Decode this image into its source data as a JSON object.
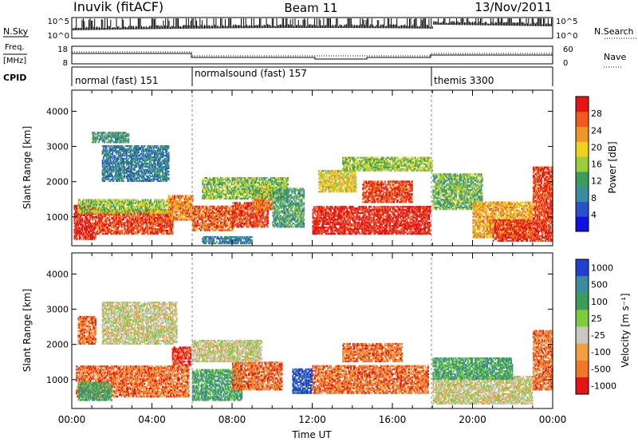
{
  "header": {
    "station": "Inuvik (fitACF)",
    "beam": "Beam 11",
    "date": "13/Nov/2011"
  },
  "left_labels": {
    "nsky": "N.Sky",
    "freq": "Freq.",
    "freq_unit": "[MHz]",
    "cpid": "CPID"
  },
  "right_labels": {
    "nsearch": "N.Search",
    "nave": "Nave"
  },
  "nsky_panel": {
    "left_ticks": [
      "10^5",
      "10^0"
    ],
    "right_ticks": [
      "10^5",
      "10^0"
    ]
  },
  "freq_panel": {
    "left_ticks": [
      "18",
      "8"
    ],
    "right_ticks": [
      "60",
      "0"
    ]
  },
  "cpid_segments": [
    {
      "label": "normal (fast) 151",
      "start_hour": 0,
      "end_hour": 6
    },
    {
      "label": "normalsound (fast) 157",
      "start_hour": 6,
      "end_hour": 18
    },
    {
      "label": "themis 3300",
      "start_hour": 18,
      "end_hour": 24
    }
  ],
  "chart_data": [
    {
      "type": "heatmap",
      "name": "power",
      "ylabel": "Slant Range [km]",
      "yticks": [
        1000,
        2000,
        3000,
        4000
      ],
      "ylim": [
        180,
        4600
      ],
      "xlim": [
        0,
        24
      ],
      "colorbar": {
        "label": "Power [dB]",
        "ticks": [
          "4",
          "8",
          "12",
          "16",
          "20",
          "24",
          "28"
        ],
        "colors": [
          "#1010e0",
          "#2850c8",
          "#3c8ca0",
          "#3c9c5a",
          "#9ccc3c",
          "#f0d21e",
          "#f09628",
          "#f05a1e",
          "#e61414"
        ]
      },
      "regions": [
        {
          "h0": 0.1,
          "h1": 1.2,
          "r0": 350,
          "r1": 1300,
          "v": 28
        },
        {
          "h0": 1.2,
          "h1": 5.0,
          "r0": 500,
          "r1": 1200,
          "v": 26
        },
        {
          "h0": 0.3,
          "h1": 4.8,
          "r0": 1100,
          "r1": 1500,
          "v": 14
        },
        {
          "h0": 4.8,
          "h1": 6.0,
          "r0": 900,
          "r1": 1600,
          "v": 22
        },
        {
          "h0": 1.5,
          "h1": 4.8,
          "r0": 2000,
          "r1": 3000,
          "v": 7
        },
        {
          "h0": 1.0,
          "h1": 2.8,
          "r0": 3100,
          "r1": 3400,
          "v": 9
        },
        {
          "h0": 6.0,
          "h1": 8.0,
          "r0": 600,
          "r1": 1300,
          "v": 24
        },
        {
          "h0": 8.0,
          "h1": 9.8,
          "r0": 700,
          "r1": 1400,
          "v": 26
        },
        {
          "h0": 9.0,
          "h1": 10.0,
          "r0": 1200,
          "r1": 1800,
          "v": 24
        },
        {
          "h0": 6.5,
          "h1": 10.8,
          "r0": 1500,
          "r1": 2100,
          "v": 13
        },
        {
          "h0": 10.0,
          "h1": 11.6,
          "r0": 700,
          "r1": 1800,
          "v": 10
        },
        {
          "h0": 6.5,
          "h1": 9.0,
          "r0": 230,
          "r1": 450,
          "v": 7
        },
        {
          "h0": 12.0,
          "h1": 17.9,
          "r0": 500,
          "r1": 1300,
          "v": 28
        },
        {
          "h0": 14.5,
          "h1": 17.0,
          "r0": 1400,
          "r1": 2000,
          "v": 26
        },
        {
          "h0": 12.3,
          "h1": 14.2,
          "r0": 1700,
          "r1": 2300,
          "v": 17
        },
        {
          "h0": 13.5,
          "h1": 18.0,
          "r0": 2300,
          "r1": 2700,
          "v": 14
        },
        {
          "h0": 18.0,
          "h1": 20.5,
          "r0": 1200,
          "r1": 2200,
          "v": 12
        },
        {
          "h0": 20.0,
          "h1": 23.0,
          "r0": 400,
          "r1": 1400,
          "v": 20
        },
        {
          "h0": 21.0,
          "h1": 24.0,
          "r0": 300,
          "r1": 900,
          "v": 27
        },
        {
          "h0": 23.0,
          "h1": 24.0,
          "r0": 900,
          "r1": 2400,
          "v": 26
        }
      ]
    },
    {
      "type": "heatmap",
      "name": "velocity",
      "ylabel": "Slant Range [km]",
      "xlabel": "Time UT",
      "yticks": [
        1000,
        2000,
        3000,
        4000
      ],
      "ylim": [
        180,
        4600
      ],
      "xlim": [
        0,
        24
      ],
      "xticks": [
        "00:00",
        "04:00",
        "08:00",
        "12:00",
        "16:00",
        "20:00",
        "00:00"
      ],
      "colorbar": {
        "label": "Velocity [m s⁻¹]",
        "ticks": [
          "1000",
          "500",
          "100",
          "25",
          "-25",
          "-100",
          "-500",
          "-1000"
        ],
        "colors": [
          "#2040d0",
          "#3c8ca0",
          "#3c9c5a",
          "#7ccc3c",
          "#c8c8c0",
          "#f0a040",
          "#f07828",
          "#e61414"
        ]
      },
      "regions": [
        {
          "h0": 0.2,
          "h1": 5.8,
          "r0": 500,
          "r1": 1400,
          "v": 6
        },
        {
          "h0": 0.3,
          "h1": 2.0,
          "r0": 400,
          "r1": 900,
          "v": 2
        },
        {
          "h0": 1.5,
          "h1": 5.2,
          "r0": 2000,
          "r1": 3200,
          "v": 4
        },
        {
          "h0": 5.0,
          "h1": 5.9,
          "r0": 1400,
          "r1": 1900,
          "v": 7
        },
        {
          "h0": 6.0,
          "h1": 8.5,
          "r0": 400,
          "r1": 1300,
          "v": 2
        },
        {
          "h0": 8.0,
          "h1": 10.5,
          "r0": 700,
          "r1": 1500,
          "v": 6
        },
        {
          "h0": 6.0,
          "h1": 9.5,
          "r0": 1500,
          "r1": 2100,
          "v": 4
        },
        {
          "h0": 11.0,
          "h1": 12.0,
          "r0": 600,
          "r1": 1300,
          "v": 0
        },
        {
          "h0": 12.0,
          "h1": 17.8,
          "r0": 600,
          "r1": 1400,
          "v": 6
        },
        {
          "h0": 13.5,
          "h1": 16.5,
          "r0": 1500,
          "r1": 2000,
          "v": 6
        },
        {
          "h0": 18.0,
          "h1": 23.0,
          "r0": 300,
          "r1": 1100,
          "v": 4
        },
        {
          "h0": 18.0,
          "h1": 22.0,
          "r0": 1000,
          "r1": 1600,
          "v": 2
        },
        {
          "h0": 23.0,
          "h1": 24.0,
          "r0": 700,
          "r1": 2400,
          "v": 6
        },
        {
          "h0": 0.3,
          "h1": 1.2,
          "r0": 2000,
          "r1": 2800,
          "v": 6
        }
      ]
    }
  ]
}
